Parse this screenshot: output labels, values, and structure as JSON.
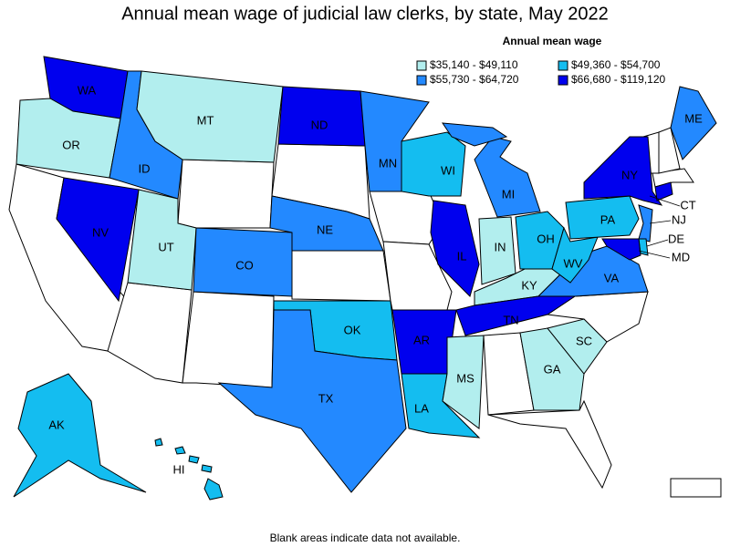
{
  "title": "Annual mean wage of judicial law clerks, by state, May 2022",
  "legend": {
    "title": "Annual mean wage",
    "items": [
      {
        "label": "$35,140 - $49,110",
        "color": "#b2eeee"
      },
      {
        "label": "$49,360 - $54,700",
        "color": "#14bdf0"
      },
      {
        "label": "$55,730 - $64,720",
        "color": "#2389ff"
      },
      {
        "label": "$66,680 - $119,120",
        "color": "#0000ee"
      }
    ]
  },
  "states": [
    {
      "label": "WA",
      "color": "#0000ee"
    },
    {
      "label": "OR",
      "color": "#b2eeee"
    },
    {
      "label": "NV",
      "color": "#0000ee"
    },
    {
      "label": "ID",
      "color": "#2389ff"
    },
    {
      "label": "MT",
      "color": "#b2eeee"
    },
    {
      "label": "UT",
      "color": "#b2eeee"
    },
    {
      "label": "CO",
      "color": "#2389ff"
    },
    {
      "label": "ND",
      "color": "#0000ee"
    },
    {
      "label": "NE",
      "color": "#2389ff"
    },
    {
      "label": "OK",
      "color": "#14bdf0"
    },
    {
      "label": "TX",
      "color": "#2389ff"
    },
    {
      "label": "MN",
      "color": "#2389ff"
    },
    {
      "label": "AR",
      "color": "#0000ee"
    },
    {
      "label": "LA",
      "color": "#14bdf0"
    },
    {
      "label": "WI",
      "color": "#14bdf0"
    },
    {
      "label": "IL",
      "color": "#0000ee"
    },
    {
      "label": "MI",
      "color": "#2389ff"
    },
    {
      "label": "IN",
      "color": "#b2eeee"
    },
    {
      "label": "OH",
      "color": "#14bdf0"
    },
    {
      "label": "KY",
      "color": "#b2eeee"
    },
    {
      "label": "TN",
      "color": "#0000ee"
    },
    {
      "label": "MS",
      "color": "#b2eeee"
    },
    {
      "label": "GA",
      "color": "#b2eeee"
    },
    {
      "label": "SC",
      "color": "#b2eeee"
    },
    {
      "label": "VA",
      "color": "#2389ff"
    },
    {
      "label": "WV",
      "color": "#14bdf0"
    },
    {
      "label": "PA",
      "color": "#14bdf0"
    },
    {
      "label": "NY",
      "color": "#0000ee"
    },
    {
      "label": "NJ",
      "color": "#2389ff"
    },
    {
      "label": "DE",
      "color": "#14bdf0"
    },
    {
      "label": "MD",
      "color": "#0000ee"
    },
    {
      "label": "CT",
      "color": "#0000ee"
    },
    {
      "label": "ME",
      "color": "#2389ff"
    },
    {
      "label": "AK",
      "color": "#14bdf0"
    },
    {
      "label": "HI",
      "color": "#14bdf0"
    }
  ],
  "note": "Blank areas indicate data not available."
}
